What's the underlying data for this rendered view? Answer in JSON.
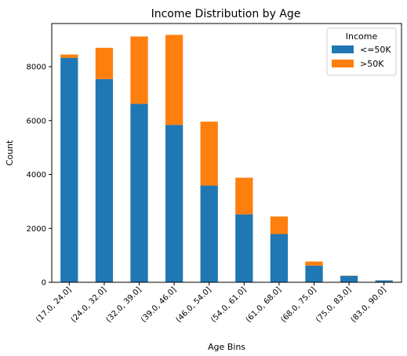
{
  "chart_data": {
    "type": "bar",
    "stacked": true,
    "title": "Income Distribution by Age",
    "xlabel": "Age Bins",
    "ylabel": "Count",
    "ylim": [
      0,
      9600
    ],
    "yticks": [
      0,
      2000,
      4000,
      6000,
      8000
    ],
    "categories": [
      "(17.0, 24.0]",
      "(24.0, 32.0]",
      "(32.0, 39.0]",
      "(39.0, 46.0]",
      "(46.0, 54.0]",
      "(54.0, 61.0]",
      "(61.0, 68.0]",
      "(68.0, 75.0]",
      "(75.0, 83.0]",
      "(83.0, 90.0]"
    ],
    "series": [
      {
        "name": "<=50K",
        "color": "#1f77b4",
        "values": [
          8330,
          7540,
          6620,
          5840,
          3590,
          2520,
          1790,
          620,
          240,
          70
        ]
      },
      {
        "name": ">50K",
        "color": "#ff7f0e",
        "values": [
          120,
          1160,
          2500,
          3340,
          2370,
          1360,
          650,
          150,
          10,
          5
        ]
      }
    ],
    "legend": {
      "title": "Income",
      "placement": "top-right"
    },
    "grid": false
  }
}
